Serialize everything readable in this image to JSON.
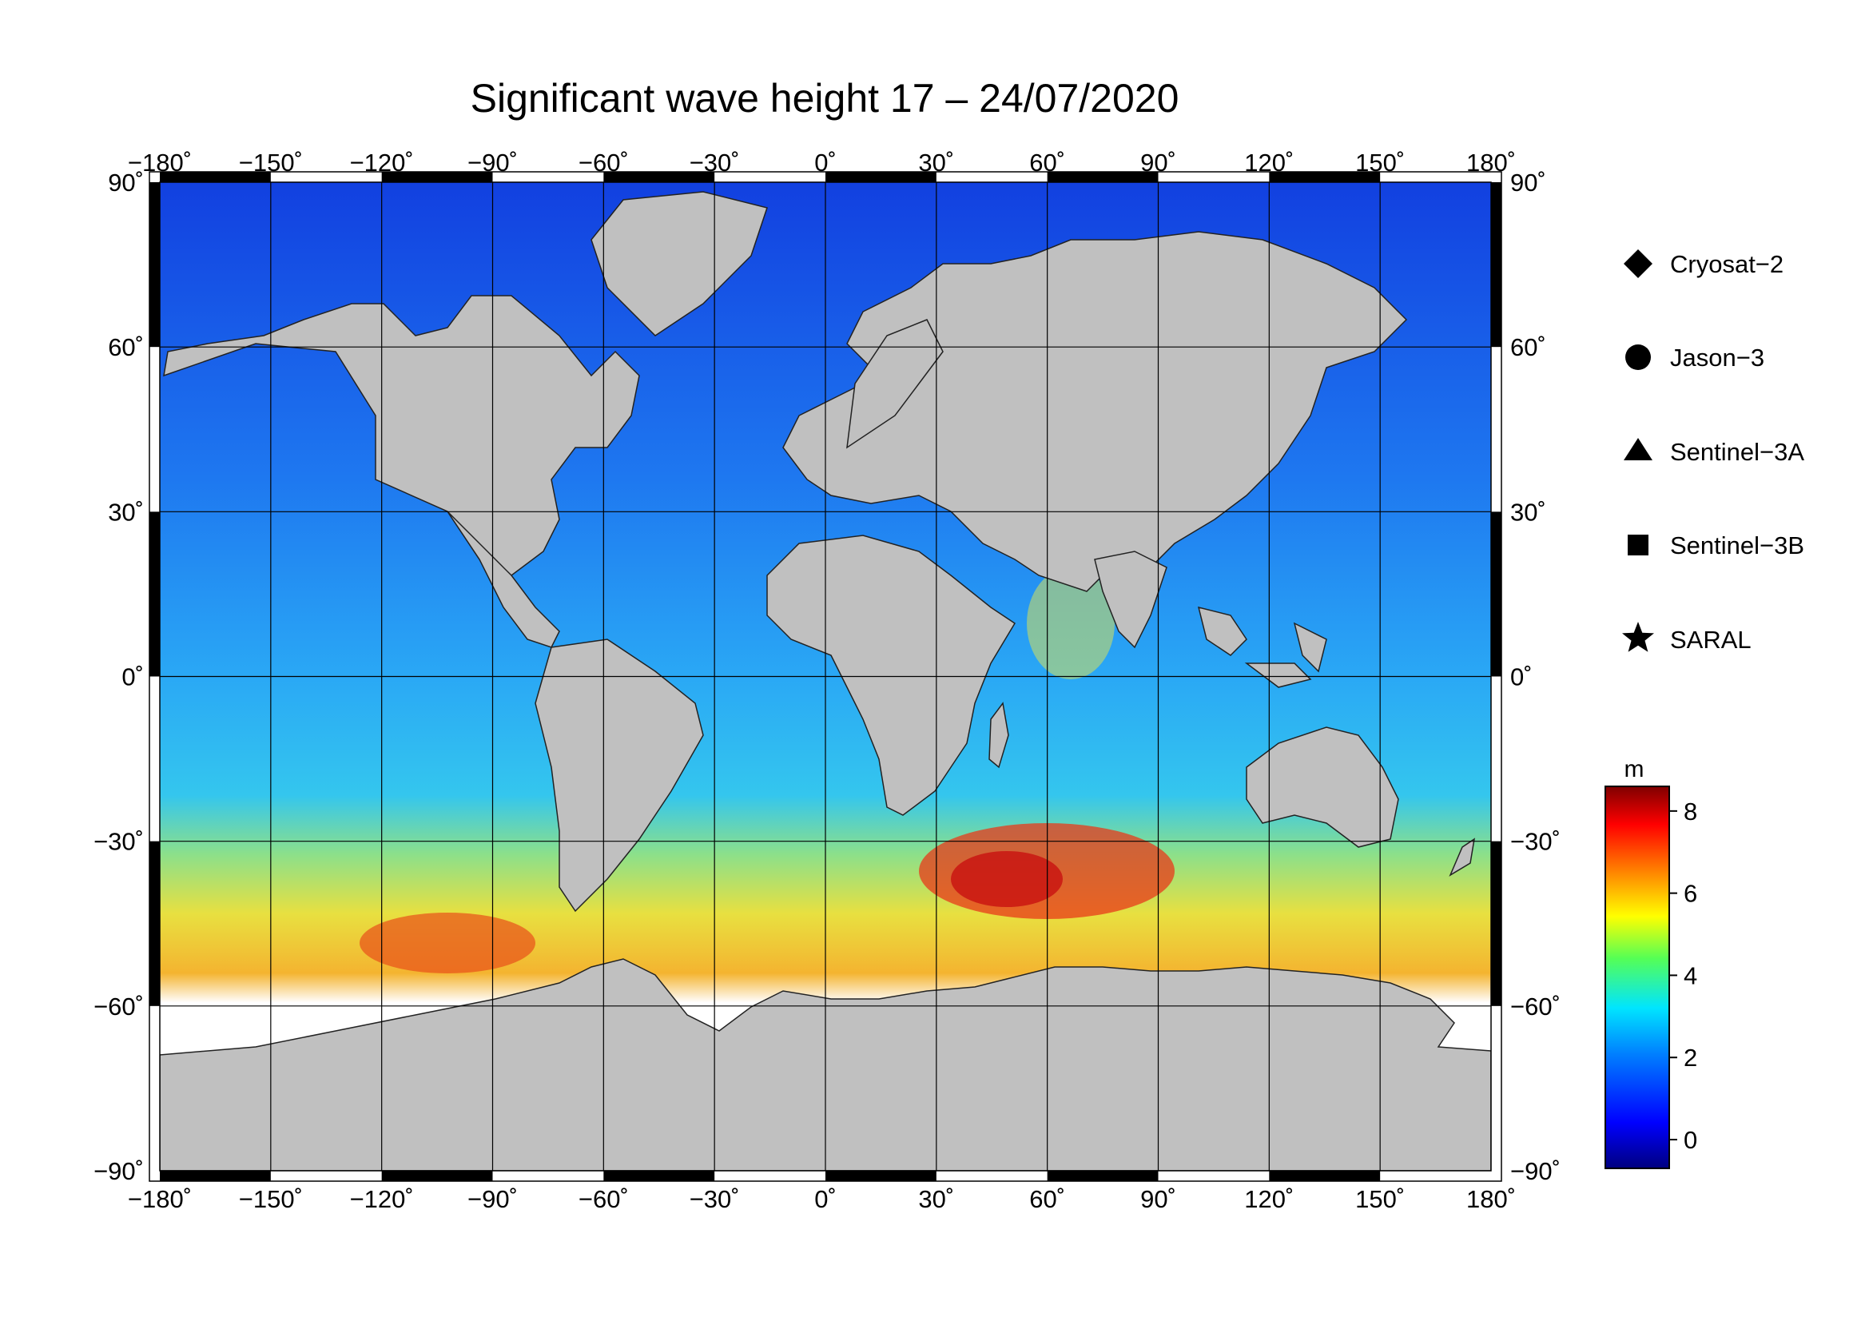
{
  "title": "Significant wave height 17 – 24/07/2020",
  "axes": {
    "lon_ticks": [
      "−180˚",
      "−150˚",
      "−120˚",
      "−90˚",
      "−60˚",
      "−30˚",
      "0˚",
      "30˚",
      "60˚",
      "90˚",
      "120˚",
      "150˚",
      "180˚"
    ],
    "lat_ticks": [
      "90˚",
      "60˚",
      "30˚",
      "0˚",
      "−30˚",
      "−60˚",
      "−90˚"
    ],
    "lon_range": [
      -180,
      180
    ],
    "lat_range": [
      -90,
      90
    ],
    "grid": true
  },
  "legend": {
    "placement": "right",
    "items": [
      {
        "label": "Cryosat−2",
        "symbol": "diamond"
      },
      {
        "label": "Jason−3",
        "symbol": "circle"
      },
      {
        "label": "Sentinel−3A",
        "symbol": "triangle"
      },
      {
        "label": "Sentinel−3B",
        "symbol": "square"
      },
      {
        "label": "SARAL",
        "symbol": "star"
      }
    ]
  },
  "colorbar": {
    "unit": "m",
    "ticks": [
      "8",
      "6",
      "4",
      "2",
      "0"
    ],
    "range": [
      -0.7,
      8.6
    ],
    "colors": [
      "#00007f",
      "#0000ff",
      "#0080ff",
      "#00e5ff",
      "#55ff55",
      "#ffff00",
      "#ff8000",
      "#ff0000",
      "#7f0000"
    ]
  },
  "colors": {
    "land": "#c0c0c0",
    "ice": "#ffffff",
    "grid": "#000000"
  }
}
